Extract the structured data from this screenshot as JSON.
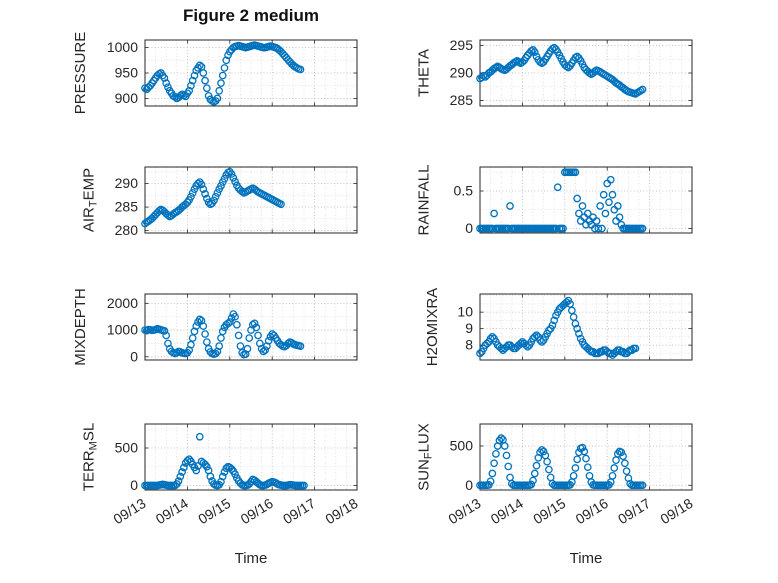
{
  "title": "Figure 2 medium",
  "xlabel": "Time",
  "marker_color": "#0072BD",
  "x_tick_labels": [
    "09/13",
    "09/14",
    "09/15",
    "09/16",
    "09/17",
    "09/18"
  ],
  "chart_data": [
    {
      "name": "pressure",
      "type": "scatter",
      "row": 0,
      "col": 0,
      "ylabel": "PRESSURE",
      "ylabel_parts": [
        [
          "PRESSURE",
          "n"
        ]
      ],
      "ylim": [
        885,
        1015
      ],
      "yticks": [
        900,
        950,
        1000
      ],
      "y_minor_step": 25,
      "t0_hours": 0,
      "dt_hours": 1,
      "values": [
        920,
        918,
        922,
        925,
        930,
        935,
        940,
        945,
        948,
        950,
        945,
        940,
        930,
        922,
        915,
        910,
        905,
        903,
        900,
        902,
        905,
        908,
        906,
        904,
        910,
        915,
        925,
        935,
        945,
        955,
        960,
        965,
        962,
        950,
        935,
        920,
        905,
        898,
        895,
        893,
        895,
        900,
        915,
        930,
        945,
        960,
        975,
        985,
        992,
        996,
        1000,
        1002,
        1003,
        1004,
        1003,
        1002,
        1001,
        1000,
        1001,
        1002,
        1003,
        1004,
        1005,
        1004,
        1003,
        1002,
        1001,
        1000,
        1000,
        1001,
        1002,
        1003,
        1002,
        1001,
        1000,
        998,
        995,
        992,
        988,
        984,
        980,
        976,
        972,
        968,
        965,
        962,
        960,
        958,
        957
      ]
    },
    {
      "name": "theta",
      "type": "scatter",
      "row": 0,
      "col": 1,
      "ylabel": "THETA",
      "ylabel_parts": [
        [
          "THETA",
          "n"
        ]
      ],
      "ylim": [
        284,
        296
      ],
      "yticks": [
        285,
        290,
        295
      ],
      "y_minor_step": 2.5,
      "t0_hours": 0,
      "dt_hours": 1,
      "values": [
        289.0,
        289.2,
        289.5,
        289.3,
        289.6,
        290.0,
        290.2,
        290.5,
        290.8,
        291.0,
        291.2,
        291.0,
        290.8,
        290.6,
        290.5,
        290.7,
        291.0,
        291.3,
        291.5,
        291.8,
        292.0,
        292.2,
        292.0,
        291.8,
        292.0,
        292.3,
        292.8,
        293.2,
        293.6,
        294.0,
        294.2,
        293.8,
        293.0,
        292.4,
        292.0,
        291.8,
        292.0,
        292.5,
        293.0,
        293.5,
        294.0,
        294.4,
        294.6,
        294.3,
        293.8,
        293.2,
        292.6,
        292.0,
        291.5,
        291.2,
        291.0,
        291.3,
        291.8,
        292.3,
        292.8,
        293.0,
        292.7,
        292.2,
        291.6,
        291.0,
        290.6,
        290.3,
        290.0,
        289.8,
        290.0,
        290.3,
        290.5,
        290.4,
        290.2,
        290.0,
        289.8,
        289.6,
        289.4,
        289.2,
        289.0,
        288.8,
        288.5,
        288.2,
        288.0,
        287.8,
        287.5,
        287.3,
        287.0,
        286.8,
        286.6,
        286.5,
        286.4,
        286.3,
        286.2,
        286.4,
        286.6,
        286.8,
        287.0
      ]
    },
    {
      "name": "air-temp",
      "type": "scatter",
      "row": 1,
      "col": 0,
      "ylabel": "AIR_TEMP",
      "ylabel_parts": [
        [
          "AIR",
          "n"
        ],
        [
          "T",
          "s"
        ],
        [
          "EMP",
          "n"
        ]
      ],
      "ylim": [
        279.5,
        293.5
      ],
      "yticks": [
        280,
        285,
        290
      ],
      "y_minor_step": 2.5,
      "t0_hours": 0,
      "dt_hours": 1,
      "values": [
        281.5,
        281.8,
        282.0,
        282.3,
        282.6,
        283.0,
        283.4,
        283.8,
        284.2,
        284.5,
        284.3,
        284.0,
        283.6,
        283.3,
        283.0,
        283.2,
        283.5,
        283.8,
        284.0,
        284.3,
        284.6,
        285.0,
        285.3,
        285.6,
        286.0,
        286.5,
        287.2,
        288.0,
        288.8,
        289.5,
        290.0,
        290.3,
        289.8,
        288.8,
        287.8,
        286.8,
        286.0,
        285.6,
        285.8,
        286.4,
        287.2,
        288.0,
        288.8,
        289.5,
        290.3,
        291.0,
        291.8,
        292.3,
        292.5,
        292.0,
        291.2,
        290.4,
        289.6,
        289.0,
        288.6,
        288.3,
        288.0,
        288.2,
        288.4,
        288.6,
        288.8,
        289.0,
        288.8,
        288.5,
        288.2,
        288.0,
        287.8,
        287.6,
        287.4,
        287.2,
        287.0,
        286.8,
        286.6,
        286.4,
        286.2,
        286.0,
        285.8,
        285.6
      ]
    },
    {
      "name": "rainfall",
      "type": "scatter",
      "row": 1,
      "col": 1,
      "ylabel": "RAINFALL",
      "ylabel_parts": [
        [
          "RAINFALL",
          "n"
        ]
      ],
      "ylim": [
        -0.06,
        0.82
      ],
      "yticks": [
        0,
        0.5
      ],
      "y_minor_step": 0.25,
      "t0_hours": 0,
      "dt_hours": 1,
      "values": [
        0,
        0,
        0,
        0,
        0,
        0,
        0,
        0,
        0.2,
        0,
        0,
        0,
        0,
        0,
        0,
        0,
        0,
        0.3,
        0,
        0,
        0,
        0,
        0,
        0,
        0,
        0,
        0,
        0,
        0,
        0,
        0,
        0,
        0,
        0,
        0,
        0,
        0,
        0,
        0,
        0,
        0,
        0,
        0,
        0,
        0.55,
        0,
        0,
        0,
        0.75,
        0.75,
        0.75,
        0.75,
        0.75,
        0.75,
        0.75,
        0.4,
        0.2,
        0.1,
        0.3,
        0.15,
        0.05,
        0.2,
        0.1,
        0.05,
        0.15,
        0,
        0.1,
        0,
        0.3,
        0,
        0.45,
        0.2,
        0.6,
        0.35,
        0.65,
        0.45,
        0.25,
        0.1,
        0.3,
        0.15,
        0.05,
        0,
        0,
        0,
        0,
        0,
        0,
        0,
        0,
        0,
        0,
        0,
        0
      ]
    },
    {
      "name": "mixdepth",
      "type": "scatter",
      "row": 2,
      "col": 0,
      "ylabel": "MIXDEPTH",
      "ylabel_parts": [
        [
          "MIXDEPTH",
          "n"
        ]
      ],
      "ylim": [
        -120,
        2350
      ],
      "yticks": [
        0,
        1000,
        2000
      ],
      "y_minor_step": 500,
      "t0_hours": 0,
      "dt_hours": 1,
      "values": [
        1000,
        980,
        1020,
        1010,
        990,
        1000,
        1020,
        1050,
        1030,
        1010,
        990,
        970,
        800,
        500,
        300,
        200,
        150,
        120,
        150,
        200,
        180,
        150,
        130,
        120,
        150,
        250,
        450,
        700,
        950,
        1150,
        1300,
        1400,
        1350,
        1150,
        850,
        550,
        300,
        180,
        120,
        100,
        120,
        200,
        400,
        700,
        950,
        1100,
        1200,
        1250,
        1300,
        1450,
        1600,
        1500,
        1200,
        800,
        400,
        150,
        80,
        100,
        300,
        700,
        1000,
        1200,
        1250,
        1100,
        800,
        500,
        300,
        200,
        250,
        400,
        600,
        750,
        850,
        800,
        700,
        600,
        500,
        450,
        400,
        380,
        420,
        500,
        550,
        520,
        480,
        450,
        430,
        420,
        400
      ]
    },
    {
      "name": "h2omixra",
      "type": "scatter",
      "row": 2,
      "col": 1,
      "ylabel": "H2OMIXRA",
      "ylabel_parts": [
        [
          "H2OMIXRA",
          "n"
        ]
      ],
      "ylim": [
        7.1,
        11.1
      ],
      "yticks": [
        8,
        9,
        10
      ],
      "y_minor_step": 0.5,
      "t0_hours": 0,
      "dt_hours": 1,
      "values": [
        7.5,
        7.6,
        7.8,
        8.0,
        8.1,
        8.2,
        8.4,
        8.5,
        8.4,
        8.2,
        8.0,
        7.9,
        7.8,
        7.7,
        7.8,
        7.9,
        8.0,
        8.0,
        7.9,
        7.8,
        7.8,
        7.9,
        8.0,
        8.1,
        8.2,
        8.1,
        8.0,
        7.9,
        8.0,
        8.2,
        8.4,
        8.5,
        8.6,
        8.5,
        8.3,
        8.2,
        8.3,
        8.5,
        8.7,
        8.9,
        9.0,
        9.2,
        9.5,
        9.8,
        10.0,
        10.2,
        10.3,
        10.4,
        10.5,
        10.6,
        10.7,
        10.5,
        10.1,
        9.7,
        9.3,
        9.0,
        8.7,
        8.4,
        8.2,
        8.0,
        7.9,
        7.8,
        7.7,
        7.6,
        7.6,
        7.5,
        7.5,
        7.5,
        7.6,
        7.6,
        7.7,
        7.7,
        7.6,
        7.5,
        7.5,
        7.4,
        7.5,
        7.6,
        7.7,
        7.7,
        7.6,
        7.6,
        7.5,
        7.5,
        7.6,
        7.7,
        7.7,
        7.8,
        7.8
      ]
    },
    {
      "name": "terr-msl",
      "type": "scatter",
      "row": 3,
      "col": 0,
      "ylabel": "TERR_MSL",
      "ylabel_parts": [
        [
          "TERR",
          "n"
        ],
        [
          "M",
          "s"
        ],
        [
          "SL",
          "n"
        ]
      ],
      "ylim": [
        -60,
        820
      ],
      "yticks": [
        0,
        500
      ],
      "y_minor_step": 250,
      "t0_hours": 0,
      "dt_hours": 1,
      "values": [
        0,
        0,
        0,
        0,
        0,
        0,
        0,
        0,
        5,
        10,
        15,
        10,
        5,
        0,
        0,
        0,
        0,
        0,
        20,
        60,
        120,
        180,
        240,
        300,
        330,
        350,
        320,
        280,
        240,
        200,
        260,
        650,
        320,
        300,
        280,
        250,
        200,
        120,
        60,
        20,
        5,
        0,
        10,
        50,
        120,
        180,
        230,
        250,
        240,
        220,
        190,
        150,
        100,
        60,
        30,
        10,
        0,
        0,
        5,
        20,
        50,
        80,
        70,
        50,
        30,
        10,
        0,
        0,
        5,
        15,
        30,
        40,
        50,
        45,
        35,
        20,
        10,
        5,
        0,
        0,
        0,
        5,
        10,
        8,
        5,
        0,
        0,
        0,
        0,
        0,
        0
      ]
    },
    {
      "name": "sun-flux",
      "type": "scatter",
      "row": 3,
      "col": 1,
      "ylabel": "SUN_FLUX",
      "ylabel_parts": [
        [
          "SUN",
          "n"
        ],
        [
          "F",
          "s"
        ],
        [
          "LUX",
          "n"
        ]
      ],
      "ylim": [
        -60,
        780
      ],
      "yticks": [
        0,
        500
      ],
      "y_minor_step": 250,
      "t0_hours": 0,
      "dt_hours": 1,
      "values": [
        0,
        0,
        0,
        0,
        0,
        5,
        50,
        150,
        280,
        400,
        500,
        570,
        600,
        580,
        500,
        380,
        240,
        100,
        20,
        0,
        0,
        0,
        0,
        0,
        0,
        0,
        0,
        0,
        0,
        10,
        60,
        150,
        250,
        350,
        420,
        450,
        430,
        380,
        300,
        200,
        100,
        20,
        0,
        0,
        0,
        0,
        0,
        0,
        0,
        0,
        0,
        5,
        40,
        120,
        220,
        330,
        420,
        470,
        480,
        430,
        340,
        230,
        120,
        40,
        5,
        0,
        0,
        0,
        0,
        0,
        0,
        0,
        0,
        5,
        40,
        120,
        220,
        320,
        400,
        430,
        420,
        370,
        280,
        180,
        90,
        20,
        0,
        0,
        0,
        0,
        0,
        0,
        0
      ]
    }
  ]
}
